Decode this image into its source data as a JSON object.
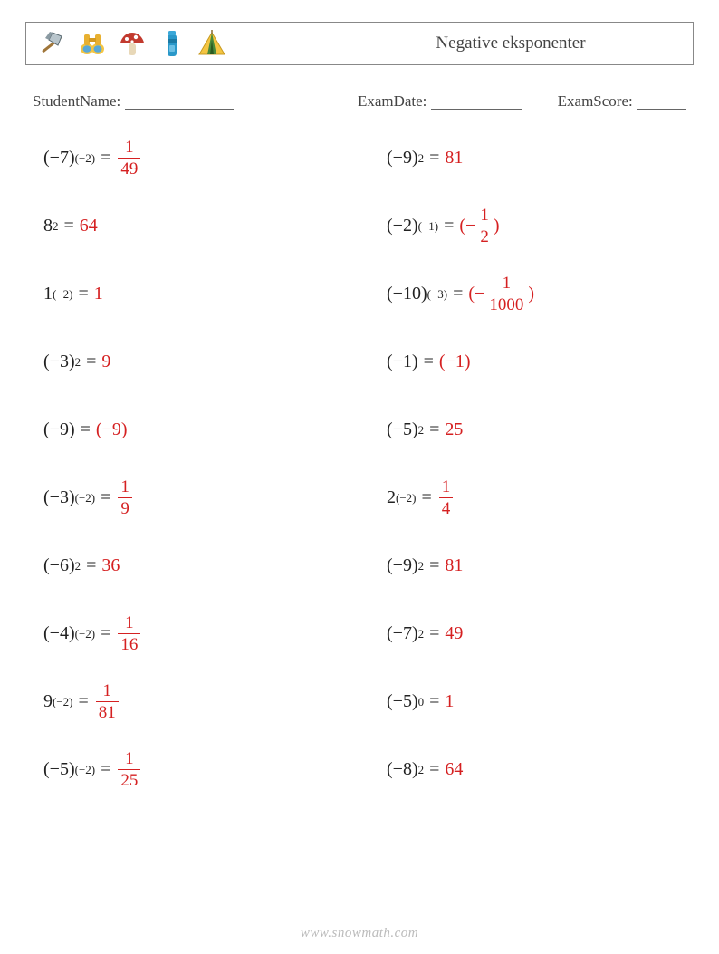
{
  "header": {
    "title": "Negative eksponenter",
    "icons": [
      "axe",
      "binoculars",
      "mushroom",
      "thermos",
      "tent"
    ]
  },
  "meta": {
    "student_label": "StudentName:",
    "student_underline_width": 120,
    "date_label": "ExamDate:",
    "date_underline_width": 100,
    "score_label": "ExamScore:",
    "score_underline_width": 55
  },
  "colors": {
    "answer": "#d52021",
    "text": "#333",
    "border": "#888"
  },
  "problems_left": [
    {
      "base": "(−7)",
      "exp": "(−2)",
      "ans_type": "frac",
      "num": "1",
      "den": "49"
    },
    {
      "base": "8",
      "exp": "2",
      "ans_type": "plain",
      "val": "64"
    },
    {
      "base": "1",
      "exp": "(−2)",
      "ans_type": "plain",
      "val": "1"
    },
    {
      "base": "(−3)",
      "exp": "2",
      "ans_type": "plain",
      "val": "9"
    },
    {
      "base": "(−9)",
      "exp": "",
      "ans_type": "paren",
      "val": "(−9)"
    },
    {
      "base": "(−3)",
      "exp": "(−2)",
      "ans_type": "frac",
      "num": "1",
      "den": "9"
    },
    {
      "base": "(−6)",
      "exp": "2",
      "ans_type": "plain",
      "val": "36"
    },
    {
      "base": "(−4)",
      "exp": "(−2)",
      "ans_type": "frac",
      "num": "1",
      "den": "16"
    },
    {
      "base": "9",
      "exp": "(−2)",
      "ans_type": "frac",
      "num": "1",
      "den": "81"
    },
    {
      "base": "(−5)",
      "exp": "(−2)",
      "ans_type": "frac",
      "num": "1",
      "den": "25"
    }
  ],
  "problems_right": [
    {
      "base": "(−9)",
      "exp": "2",
      "ans_type": "plain",
      "val": "81"
    },
    {
      "base": "(−2)",
      "exp": "(−1)",
      "ans_type": "negparenfrac",
      "num": "1",
      "den": "2"
    },
    {
      "base": "(−10)",
      "exp": "(−3)",
      "ans_type": "negparenfrac",
      "num": "1",
      "den": "1000"
    },
    {
      "base": "(−1)",
      "exp": "",
      "ans_type": "paren",
      "val": "(−1)"
    },
    {
      "base": "(−5)",
      "exp": "2",
      "ans_type": "plain",
      "val": "25"
    },
    {
      "base": "2",
      "exp": "(−2)",
      "ans_type": "frac",
      "num": "1",
      "den": "4"
    },
    {
      "base": "(−9)",
      "exp": "2",
      "ans_type": "plain",
      "val": "81"
    },
    {
      "base": "(−7)",
      "exp": "2",
      "ans_type": "plain",
      "val": "49"
    },
    {
      "base": "(−5)",
      "exp": "0",
      "ans_type": "plain",
      "val": "1"
    },
    {
      "base": "(−8)",
      "exp": "2",
      "ans_type": "plain",
      "val": "64"
    }
  ],
  "footer": "www.snowmath.com"
}
